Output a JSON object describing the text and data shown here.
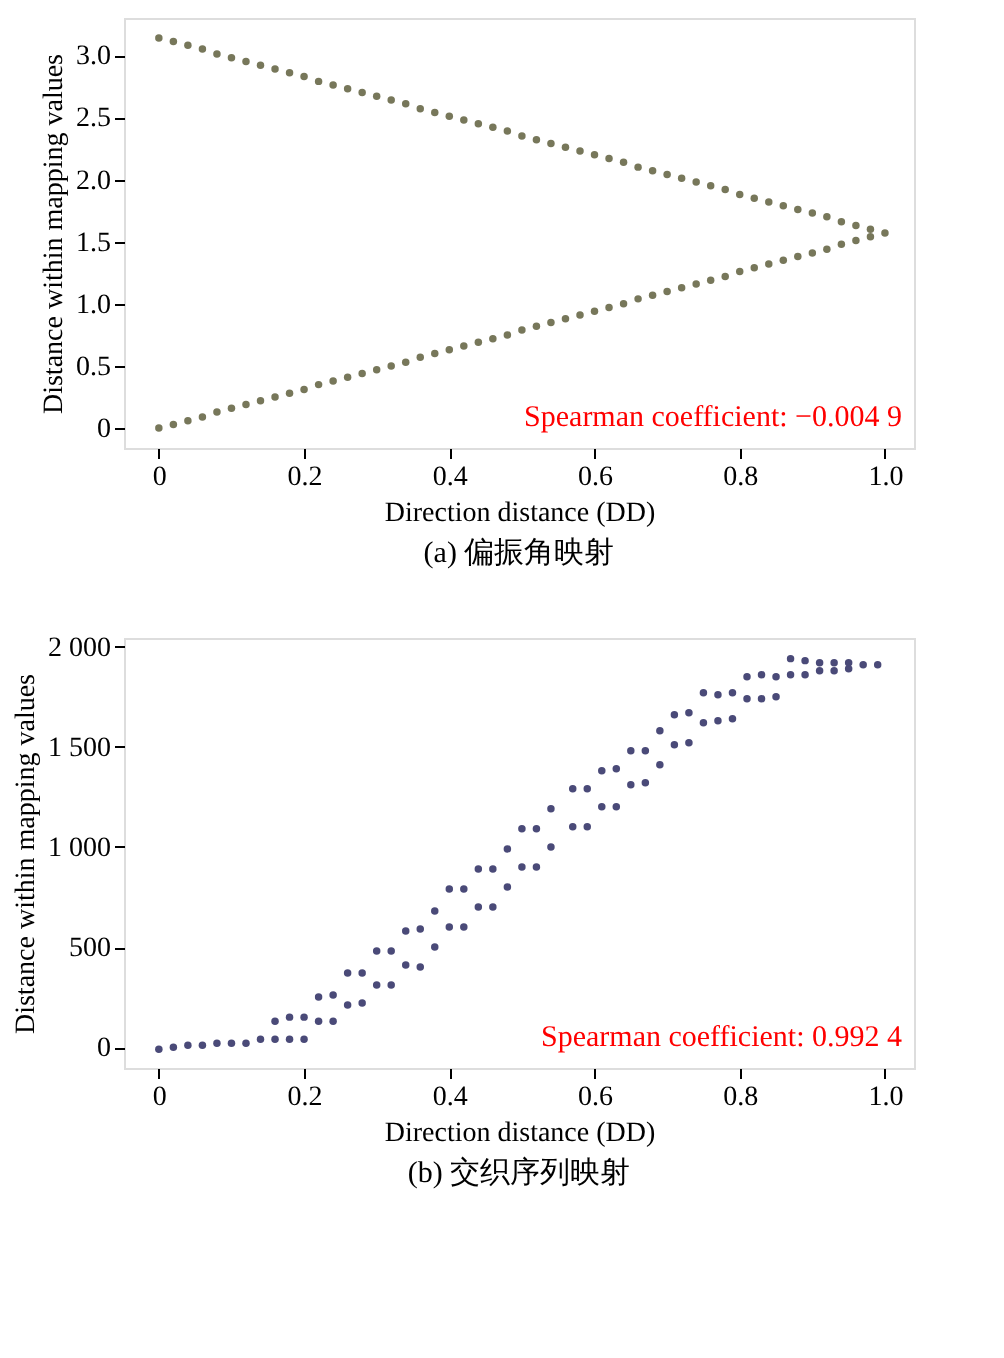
{
  "chart_data": [
    {
      "type": "scatter",
      "title": "(a) 偏振角映射",
      "xlabel": "Direction distance (DD)",
      "ylabel": "Distance within mapping values",
      "annotations": [
        "Spearman coefficient: −0.004 9"
      ],
      "marker": "circle",
      "grid": false,
      "legend": false,
      "x": [
        0,
        0.02,
        0.04,
        0.06,
        0.08,
        0.1,
        0.12,
        0.14,
        0.16,
        0.18,
        0.2,
        0.22,
        0.24,
        0.26,
        0.28,
        0.3,
        0.32,
        0.34,
        0.36,
        0.38,
        0.4,
        0.42,
        0.44,
        0.46,
        0.48,
        0.5,
        0.52,
        0.54,
        0.56,
        0.58,
        0.6,
        0.62,
        0.64,
        0.66,
        0.68,
        0.7,
        0.72,
        0.74,
        0.76,
        0.78,
        0.8,
        0.82,
        0.84,
        0.86,
        0.88,
        0.9,
        0.92,
        0.94,
        0.96,
        0.98,
        1.0
      ],
      "series": [
        {
          "color": "#77775a",
          "values": [
            3.14,
            3.11,
            3.08,
            3.05,
            3.01,
            2.98,
            2.95,
            2.92,
            2.89,
            2.86,
            2.83,
            2.79,
            2.76,
            2.73,
            2.7,
            2.67,
            2.64,
            2.61,
            2.57,
            2.54,
            2.51,
            2.48,
            2.45,
            2.42,
            2.39,
            2.35,
            2.32,
            2.29,
            2.26,
            2.23,
            2.2,
            2.17,
            2.14,
            2.1,
            2.07,
            2.04,
            2.01,
            1.98,
            1.95,
            1.92,
            1.88,
            1.85,
            1.82,
            1.79,
            1.76,
            1.73,
            1.7,
            1.66,
            1.63,
            1.6,
            null
          ]
        },
        {
          "color": "#77775a",
          "values": [
            0,
            0.03,
            0.06,
            0.09,
            0.13,
            0.16,
            0.19,
            0.22,
            0.25,
            0.28,
            0.31,
            0.35,
            0.38,
            0.41,
            0.44,
            0.47,
            0.5,
            0.53,
            0.57,
            0.6,
            0.63,
            0.66,
            0.69,
            0.72,
            0.75,
            0.79,
            0.82,
            0.85,
            0.88,
            0.91,
            0.94,
            0.97,
            1.0,
            1.04,
            1.07,
            1.1,
            1.13,
            1.16,
            1.19,
            1.22,
            1.26,
            1.29,
            1.32,
            1.35,
            1.38,
            1.41,
            1.44,
            1.48,
            1.51,
            1.54,
            1.57
          ]
        }
      ],
      "xlim": [
        -0.048,
        1.04
      ],
      "ylim": [
        -0.16,
        3.3
      ],
      "xticks": [
        0,
        0.2,
        0.4,
        0.6,
        0.8,
        {
          "value": 1,
          "label": "1.0"
        }
      ],
      "yticks": [
        0,
        0.5,
        {
          "value": 1,
          "label": "1.0"
        },
        1.5,
        {
          "value": 2,
          "label": "2.0"
        },
        2.5,
        {
          "value": 3,
          "label": "3.0"
        }
      ]
    },
    {
      "type": "scatter",
      "title": "(b) 交织序列映射",
      "xlabel": "Direction distance (DD)",
      "ylabel": "Distance within mapping values",
      "annotations": [
        "Spearman coefficient: 0.992 4"
      ],
      "marker": "circle",
      "grid": false,
      "legend": false,
      "series": [
        {
          "color": "#4a4a78",
          "x": [
            0,
            0.02,
            0.04,
            0.06,
            0.08,
            0.1,
            0.12,
            0.14,
            0.16,
            0.16,
            0.18,
            0.18,
            0.2,
            0.2,
            0.22,
            0.22,
            0.24,
            0.24,
            0.26,
            0.26,
            0.28,
            0.28,
            0.3,
            0.3,
            0.32,
            0.32,
            0.34,
            0.34,
            0.36,
            0.36,
            0.38,
            0.38,
            0.4,
            0.4,
            0.42,
            0.42,
            0.44,
            0.44,
            0.46,
            0.46,
            0.48,
            0.48,
            0.5,
            0.5,
            0.52,
            0.52,
            0.54,
            0.54,
            0.57,
            0.57,
            0.59,
            0.59,
            0.61,
            0.61,
            0.63,
            0.63,
            0.65,
            0.65,
            0.67,
            0.67,
            0.69,
            0.69,
            0.71,
            0.71,
            0.73,
            0.73,
            0.75,
            0.75,
            0.77,
            0.77,
            0.79,
            0.79,
            0.81,
            0.81,
            0.83,
            0.83,
            0.85,
            0.85,
            0.87,
            0.87,
            0.89,
            0.89,
            0.91,
            0.91,
            0.93,
            0.93,
            0.95,
            0.95,
            0.97,
            0.99
          ],
          "values": [
            -10,
            0,
            10,
            10,
            20,
            20,
            20,
            40,
            40,
            130,
            40,
            150,
            40,
            150,
            250,
            130,
            260,
            130,
            370,
            210,
            370,
            220,
            480,
            310,
            480,
            310,
            580,
            410,
            590,
            400,
            680,
            500,
            790,
            600,
            790,
            600,
            890,
            700,
            890,
            700,
            990,
            800,
            1090,
            900,
            1090,
            900,
            1190,
            1000,
            1290,
            1100,
            1290,
            1100,
            1380,
            1200,
            1390,
            1200,
            1480,
            1310,
            1480,
            1320,
            1580,
            1410,
            1660,
            1510,
            1670,
            1520,
            1770,
            1620,
            1760,
            1630,
            1770,
            1640,
            1850,
            1740,
            1860,
            1740,
            1850,
            1750,
            1940,
            1860,
            1930,
            1860,
            1920,
            1880,
            1920,
            1880,
            1920,
            1890,
            1910,
            1910
          ]
        }
      ],
      "xlim": [
        -0.048,
        1.04
      ],
      "ylim": [
        -104,
        2043
      ],
      "xticks": [
        0,
        0.2,
        0.4,
        0.6,
        0.8,
        {
          "value": 1,
          "label": "1.0"
        }
      ],
      "yticks": [
        0,
        500,
        {
          "value": 1000,
          "label": "1 000"
        },
        {
          "value": 1500,
          "label": "1 500"
        },
        {
          "value": 2000,
          "label": "2 000"
        }
      ]
    }
  ]
}
